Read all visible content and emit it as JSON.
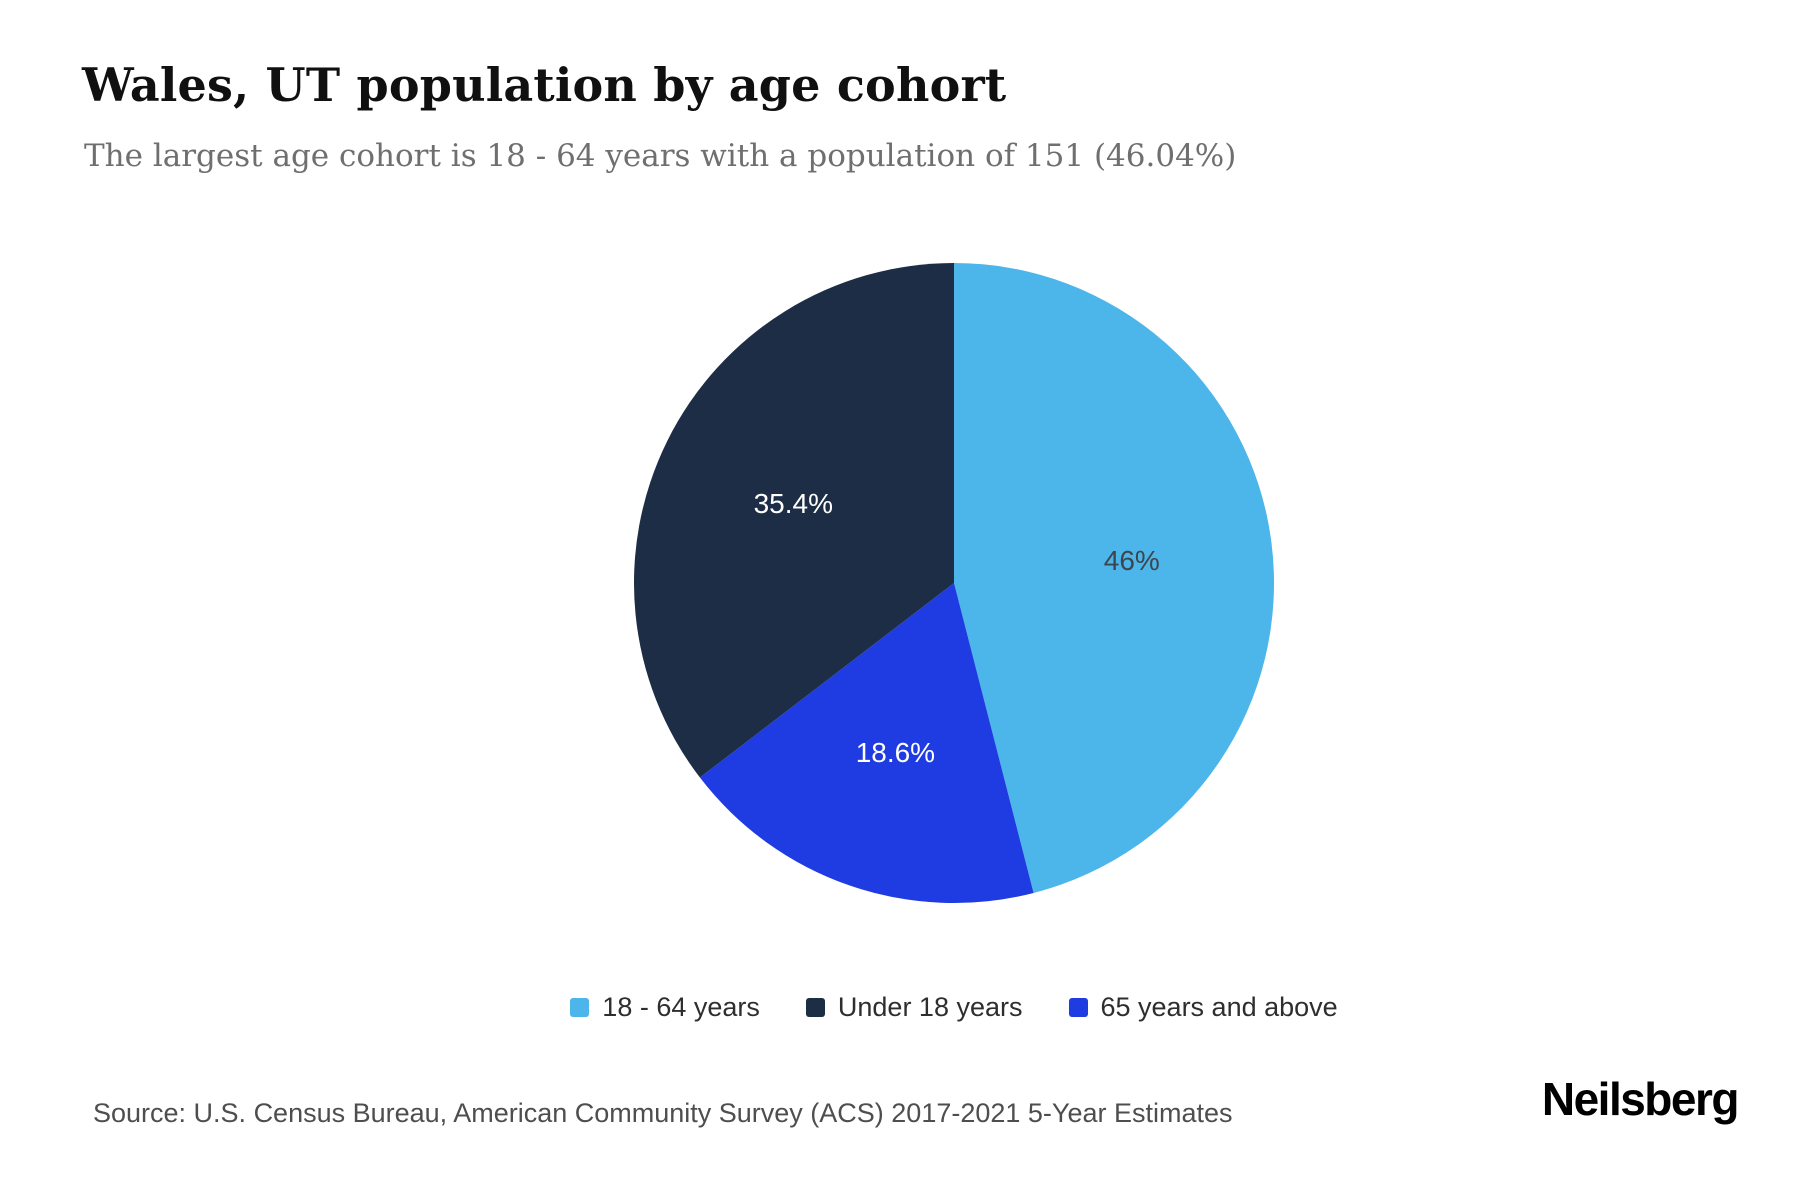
{
  "header": {
    "title": "Wales, UT population by age cohort",
    "subtitle": "The largest age cohort is 18 - 64 years with a population of 151 (46.04%)"
  },
  "chart_data": {
    "type": "pie",
    "title": "Wales, UT population by age cohort",
    "subtitle": "The largest age cohort is 18 - 64 years with a population of 151 (46.04%)",
    "units": "percent of population",
    "series": [
      {
        "label": "18 - 64 years",
        "value": 46.0,
        "display_label": "46%",
        "color": "#4cb5ea",
        "text_color": "#3d464d"
      },
      {
        "label": "Under 18 years",
        "value": 35.4,
        "display_label": "35.4%",
        "color": "#1c2d45",
        "text_color": "#ffffff"
      },
      {
        "label": "65 years and above",
        "value": 18.6,
        "display_label": "18.6%",
        "color": "#1e3ce2",
        "text_color": "#ffffff"
      }
    ],
    "draw_order": [
      0,
      2,
      1
    ],
    "start_angle_deg": 0,
    "direction": "clockwise",
    "legend_position": "bottom",
    "largest_cohort": {
      "label": "18 - 64 years",
      "population": 151,
      "percent": 46.04
    }
  },
  "footer": {
    "source": "Source: U.S. Census Bureau, American Community Survey (ACS) 2017-2021 5-Year Estimates",
    "brand": "Neilsberg"
  }
}
